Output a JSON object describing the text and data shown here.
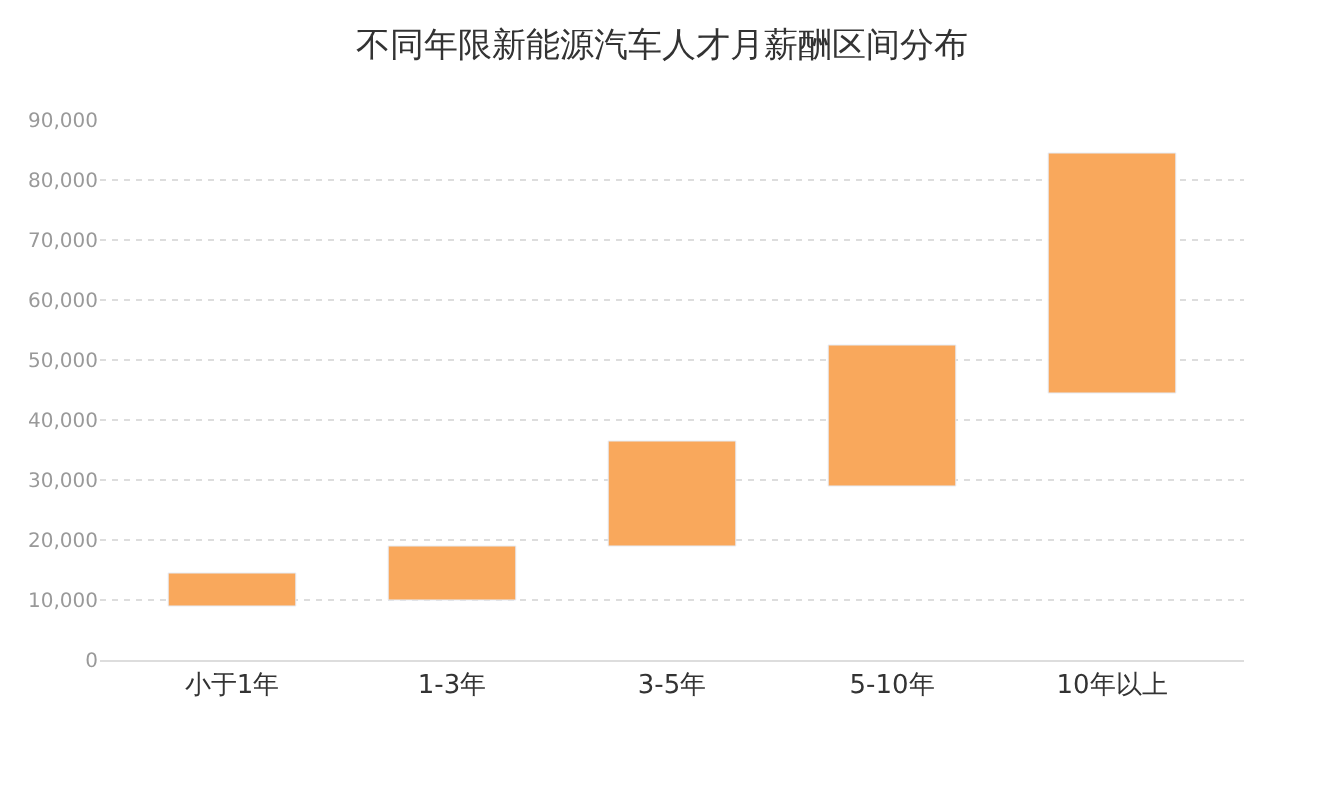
{
  "chart_data": {
    "type": "bar",
    "title": "不同年限新能源汽车人才月薪酬区间分布",
    "categories": [
      "小于1年",
      "1-3年",
      "3-5年",
      "5-10年",
      "10年以上"
    ],
    "base": [
      9000,
      10000,
      19000,
      29000,
      44500
    ],
    "values": [
      5500,
      9000,
      17500,
      23500,
      40000
    ],
    "color": "#f9a85c",
    "ylim": [
      0,
      90000
    ],
    "yticks": [
      {
        "value": 0,
        "label": "0"
      },
      {
        "value": 10000,
        "label": "10,000"
      },
      {
        "value": 20000,
        "label": "20,000"
      },
      {
        "value": 30000,
        "label": "30,000"
      },
      {
        "value": 40000,
        "label": "40,000"
      },
      {
        "value": 50000,
        "label": "50,000"
      },
      {
        "value": 60000,
        "label": "60,000"
      },
      {
        "value": 70000,
        "label": "70,000"
      },
      {
        "value": 80000,
        "label": "80,000"
      },
      {
        "value": 90000,
        "label": "90,000"
      }
    ],
    "grid": "y"
  }
}
